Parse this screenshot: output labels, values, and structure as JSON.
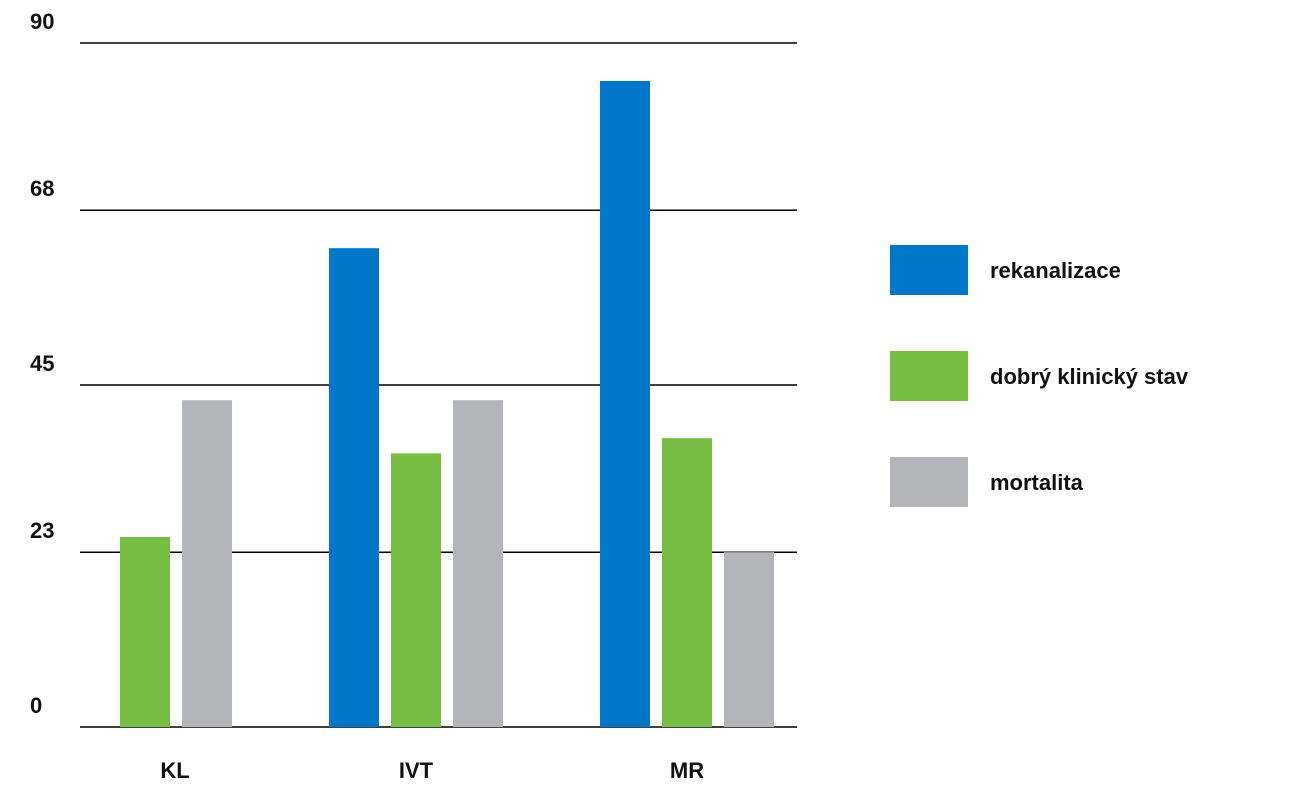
{
  "chart_data": {
    "type": "bar",
    "categories": [
      "KL",
      "IVT",
      "MR"
    ],
    "series": [
      {
        "name": "rekanalizace",
        "color": "#0077c8",
        "values": [
          0,
          63,
          85
        ]
      },
      {
        "name": "dobrý klinický stav",
        "color": "#76bd43",
        "values": [
          25,
          36,
          38
        ]
      },
      {
        "name": "mortalita",
        "color": "#b3b5b8",
        "values": [
          43,
          43,
          23
        ]
      }
    ],
    "ylim": [
      0,
      90
    ],
    "yticks": [
      0,
      23,
      45,
      68,
      90
    ],
    "grid": true,
    "legend": "right"
  }
}
